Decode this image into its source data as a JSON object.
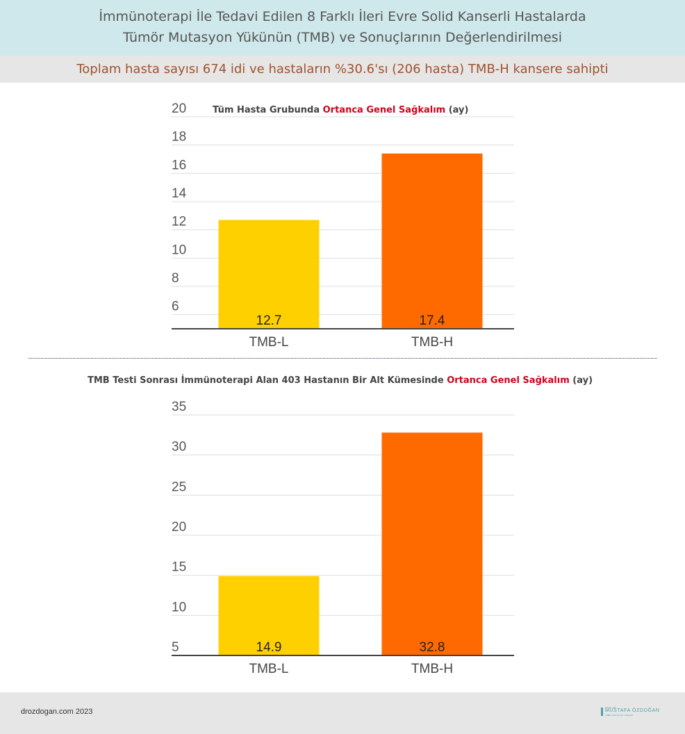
{
  "header": {
    "line1": "İmmünoterapi İle Tedavi Edilen 8 Farklı İleri Evre Solid Kanserli Hastalarda",
    "line2": "Tümör Mutasyon Yükünün (TMB) ve Sonuçlarının Değerlendirilmesi"
  },
  "subheader": "Toplam hasta sayısı 674 idi ve hastaların %30.6'sı (206 hasta) TMB-H kansere sahipti",
  "chart_data": [
    {
      "type": "bar",
      "title_parts": [
        "Tüm Hasta Grubunda ",
        "Ortanca Genel Sağkalım",
        " (ay)"
      ],
      "categories": [
        "TMB-L",
        "TMB-H"
      ],
      "values": [
        12.7,
        17.4
      ],
      "data_labels": [
        "12.7",
        "17.4"
      ],
      "yticks": [
        "6",
        "8",
        "10",
        "12",
        "14",
        "16",
        "18",
        "20"
      ],
      "ylim": [
        5,
        20
      ],
      "colors": [
        "#ffd000",
        "#ff6a00"
      ],
      "grid": true
    },
    {
      "type": "bar",
      "title_parts": [
        "TMB Testi Sonrası İmmünoterapi Alan 403 Hastanın Bir Alt Kümesinde ",
        "Ortanca Genel Sağkalım",
        " (ay)"
      ],
      "categories": [
        "TMB-L",
        "TMB-H"
      ],
      "values": [
        14.9,
        32.8
      ],
      "data_labels": [
        "14.9",
        "32.8"
      ],
      "yticks": [
        "5",
        "10",
        "15",
        "20",
        "25",
        "30",
        "35"
      ],
      "ylim": [
        5,
        35
      ],
      "colors": [
        "#ffd000",
        "#ff6a00"
      ],
      "grid": true
    }
  ],
  "footer": {
    "site": "drozdogan.com 2023",
    "logo_small": "PROF. DR.",
    "logo_name": "MUSTAFA ÖZDOĞAN",
    "logo_sub": "TIBBİ ONKOLOJİ UZMANI"
  }
}
